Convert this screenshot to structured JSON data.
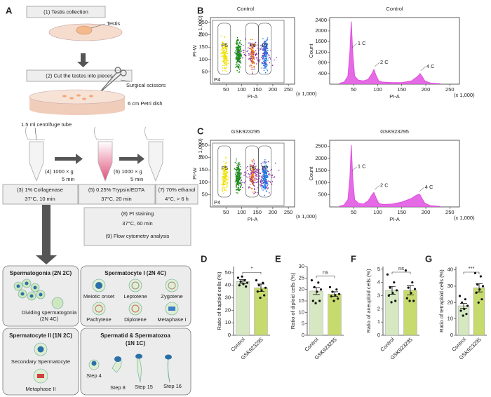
{
  "panel_labels": [
    "A",
    "B",
    "C",
    "D",
    "E",
    "F",
    "G"
  ],
  "workflow": {
    "steps": [
      "(1) Testis collection",
      "(2) Cut the testes into pieces"
    ],
    "annotations": [
      "Testis",
      "Surgical scissors",
      "6 cm Petri dish",
      "1.5 ml centrifuge tube"
    ],
    "centrifuge": [
      {
        "speed": "(4) 1000 × g",
        "time": "5 min"
      },
      {
        "speed": "(6) 1000 × g",
        "time": "5 min"
      }
    ],
    "treatments": [
      {
        "step": "(3) 1% Collagenase",
        "condition": "37°C, 10 min"
      },
      {
        "step": "(5) 0.25% Trypsin/EDTA",
        "condition": "37°C, 20 min"
      },
      {
        "step": "(7) 70% ethanol",
        "condition": "4°C, > 6 h"
      }
    ],
    "staining": {
      "step": "(8) PI staining",
      "condition": "37°C, 60 min",
      "analysis": "(9) Flow cytometry analysis"
    }
  },
  "cells": [
    {
      "title": "Spermatogonia (2N 2C)",
      "labels": [
        "Dividing spermatogonia",
        "(2N 4C)"
      ]
    },
    {
      "title": "Spermatocyte I (2N 4C)",
      "labels": [
        "Meiotic onset",
        "Leptotene",
        "Zygotene",
        "Pachytene",
        "Diplotene",
        "Metaphase I"
      ]
    },
    {
      "title": "Spermatocyte II (1N 2C)",
      "labels": [
        "Secondary Spermatocyte",
        "Metaphase II"
      ]
    },
    {
      "title": "Spermatid & Spermatozoa",
      "subtitle": "(1N 1C)",
      "labels": [
        "Step 4",
        "Step 8",
        "Step 15",
        "Step 16"
      ]
    }
  ],
  "flow_plots": [
    {
      "title": "Control",
      "xlabel": "PI-A",
      "ylabel": "PI-W",
      "xunit": "(x 1,000)",
      "yunit": "(x 1,000)",
      "gates": [
        "P4",
        "P5",
        "P6",
        "P7"
      ],
      "xlim": [
        0,
        270
      ],
      "ylim": [
        0,
        270
      ],
      "xticks": [
        50,
        100,
        150,
        200,
        250
      ],
      "yticks": [
        50,
        100,
        150,
        200,
        250
      ]
    },
    {
      "title": "GSK923295",
      "xlabel": "PI-A",
      "ylabel": "PI-W",
      "xunit": "(x 1,000)",
      "yunit": "(x 1,000)",
      "gates": [
        "P4",
        "P5",
        "P6",
        "P7"
      ],
      "xlim": [
        0,
        270
      ],
      "ylim": [
        0,
        270
      ],
      "xticks": [
        50,
        100,
        150,
        200,
        250
      ],
      "yticks": [
        50,
        100,
        150,
        200,
        250
      ]
    }
  ],
  "chart_data": [
    {
      "type": "area",
      "title": "Control",
      "xlabel": "PI-A",
      "xunit": "(x 1,000)",
      "ylabel": "Count",
      "color": "#e050e0",
      "x": [
        20,
        30,
        38,
        42,
        45,
        48,
        52,
        60,
        70,
        80,
        88,
        92,
        96,
        102,
        110,
        130,
        150,
        170,
        180,
        185,
        188,
        192,
        198,
        210,
        230
      ],
      "values": [
        30,
        80,
        300,
        1200,
        2350,
        1200,
        300,
        150,
        120,
        180,
        400,
        550,
        350,
        120,
        80,
        60,
        60,
        120,
        250,
        330,
        400,
        300,
        120,
        40,
        20
      ],
      "annotations": [
        "1 C",
        "2 C",
        "4 C"
      ],
      "xlim": [
        0,
        270
      ],
      "xticks": [
        50,
        100,
        150,
        200,
        250
      ],
      "ylim": [
        0,
        2500
      ],
      "yticks": [
        400,
        800,
        1200,
        1600,
        2000,
        2400
      ]
    },
    {
      "type": "area",
      "title": "GSK923295",
      "xlabel": "PI-A",
      "xunit": "(x 1,000)",
      "ylabel": "Count",
      "color": "#e050e0",
      "x": [
        20,
        30,
        38,
        42,
        45,
        48,
        52,
        60,
        70,
        80,
        88,
        92,
        96,
        102,
        110,
        130,
        150,
        170,
        180,
        185,
        188,
        192,
        198,
        210,
        230
      ],
      "values": [
        30,
        80,
        300,
        1200,
        2550,
        1200,
        300,
        150,
        120,
        250,
        500,
        600,
        400,
        150,
        100,
        120,
        200,
        350,
        480,
        520,
        500,
        350,
        150,
        50,
        20
      ],
      "annotations": [
        "1 C",
        "2 C",
        "4 C"
      ],
      "xlim": [
        0,
        270
      ],
      "xticks": [
        50,
        100,
        150,
        200,
        250
      ],
      "ylim": [
        0,
        2750
      ],
      "yticks": [
        500,
        1000,
        1500,
        2000,
        2500
      ]
    },
    {
      "type": "bar",
      "ylabel": "Ratio of haploid cells (%)",
      "categories": [
        "Control",
        "GSK923295"
      ],
      "values": [
        43,
        38
      ],
      "errors": [
        1.5,
        3
      ],
      "points": [
        [
          46,
          44,
          43,
          42,
          41,
          40,
          39,
          47
        ],
        [
          44,
          42,
          40,
          38,
          36,
          35,
          32,
          30
        ]
      ],
      "colors": [
        "#d6e8c2",
        "#c6da6e"
      ],
      "ylim": [
        0,
        55
      ],
      "yticks": [
        0,
        10,
        20,
        30,
        40,
        50
      ],
      "significance": "*"
    },
    {
      "type": "bar",
      "ylabel": "Ratio of diploid cells (%)",
      "categories": [
        "Control",
        "GSK923295"
      ],
      "values": [
        19.3,
        18
      ],
      "errors": [
        1.5,
        1
      ],
      "points": [
        [
          24,
          23,
          21,
          20,
          19,
          15,
          15,
          14
        ],
        [
          21,
          20,
          19,
          18,
          17.5,
          17,
          16,
          15
        ]
      ],
      "colors": [
        "#d6e8c2",
        "#c6da6e"
      ],
      "ylim": [
        0,
        30
      ],
      "yticks": [
        0,
        5,
        10,
        15,
        20,
        25,
        30
      ],
      "significance": "ns"
    },
    {
      "type": "bar",
      "ylabel": "Ratio of aneuploid cells (%)",
      "categories": [
        "Control",
        "GSK923295"
      ],
      "values": [
        3.4,
        3.4
      ],
      "errors": [
        0.3,
        0.35
      ],
      "points": [
        [
          4.6,
          4,
          3.6,
          3.4,
          3.2,
          3,
          2.6,
          2.5
        ],
        [
          4.9,
          4,
          3.6,
          3.5,
          3.2,
          2.8,
          2.6,
          2.6
        ]
      ],
      "colors": [
        "#d6e8c2",
        "#c6da6e"
      ],
      "ylim": [
        0,
        5.2
      ],
      "yticks": [
        0,
        1,
        2,
        3,
        4,
        5
      ],
      "significance": "ns"
    },
    {
      "type": "bar",
      "ylabel": "Ratio of tetraploid cells (%)",
      "categories": [
        "Control",
        "GSK923295"
      ],
      "values": [
        18,
        29
      ],
      "errors": [
        1.5,
        2.5
      ],
      "points": [
        [
          24,
          22,
          20,
          18,
          16,
          15,
          13,
          12
        ],
        [
          38,
          36,
          31,
          30,
          28,
          26,
          22,
          20
        ]
      ],
      "colors": [
        "#d6e8c2",
        "#c6da6e"
      ],
      "ylim": [
        0,
        42
      ],
      "yticks": [
        0,
        10,
        20,
        30,
        40
      ],
      "significance": "***"
    }
  ]
}
